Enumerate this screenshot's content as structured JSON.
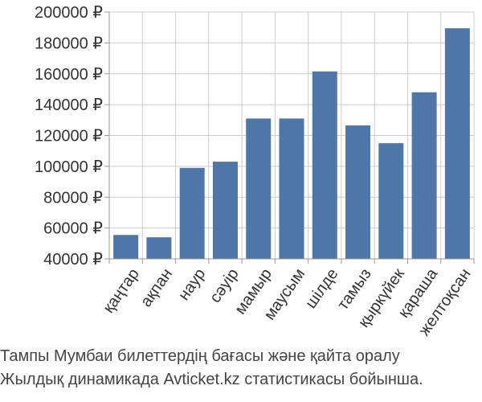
{
  "caption": {
    "line1": "Тампы Мумбаи билеттердің бағасы және қайта оралу",
    "line2": "Жылдық динамикада Avticket.kz статистикасы бойынша."
  },
  "colors": {
    "bar": "#4e76a8",
    "grid": "#cccccc",
    "axis": "#999999",
    "text": "#333333"
  },
  "chart_data": {
    "type": "bar",
    "title": "",
    "xlabel": "",
    "ylabel": "",
    "categories": [
      "қаңтар",
      "ақпан",
      "наур",
      "сәуір",
      "мамыр",
      "маусым",
      "шілде",
      "тамыз",
      "қыркүйек",
      "қараша",
      "желтоқсан"
    ],
    "values": [
      55500,
      54000,
      99000,
      103000,
      131000,
      131000,
      161500,
      126500,
      115000,
      148000,
      189500
    ],
    "ylim": [
      40000,
      200000
    ],
    "yticks": [
      40000,
      60000,
      80000,
      100000,
      120000,
      140000,
      160000,
      180000,
      200000
    ],
    "ytick_labels": [
      "40000 ₽",
      "60000 ₽",
      "80000 ₽",
      "100000 ₽",
      "120000 ₽",
      "140000 ₽",
      "160000 ₽",
      "180000 ₽",
      "200000 ₽"
    ],
    "grid": true,
    "legend": "none"
  }
}
